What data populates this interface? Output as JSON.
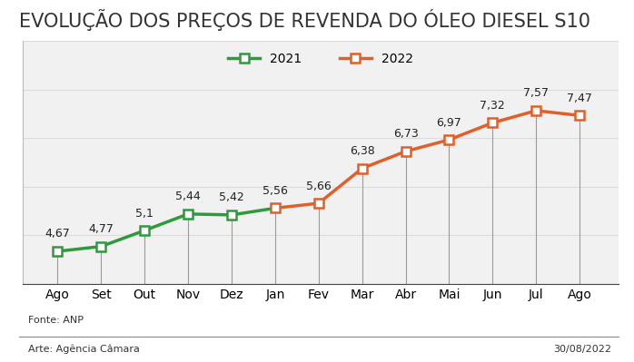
{
  "chart_data": {
    "type": "line",
    "title": "EVOLUÇÃO DOS PREÇOS DE REVENDA DO ÓLEO DIESEL S10",
    "source": "Fonte: ANP",
    "credit": "Arte: Agência Câmara",
    "date": "30/08/2022",
    "categories": [
      "Ago",
      "Set",
      "Out",
      "Nov",
      "Dez",
      "Jan",
      "Fev",
      "Mar",
      "Abr",
      "Mai",
      "Jun",
      "Jul",
      "Ago"
    ],
    "series": [
      {
        "name": "2021",
        "color": "#2e9a3c",
        "marker": "s",
        "line_style": "solid",
        "values": [
          4.67,
          4.77,
          5.1,
          5.44,
          5.42,
          null,
          null,
          null,
          null,
          null,
          null,
          null,
          null
        ],
        "value_labels": [
          "4,67",
          "4,77",
          "5,1",
          "5,44",
          "5,42",
          null,
          null,
          null,
          null,
          null,
          null,
          null,
          null
        ]
      },
      {
        "name": "2022",
        "color": "#e0602a",
        "marker": "s",
        "line_style": "solid",
        "values": [
          null,
          null,
          null,
          null,
          null,
          5.56,
          5.66,
          6.38,
          6.73,
          6.97,
          7.32,
          7.57,
          7.47
        ],
        "value_labels": [
          null,
          null,
          null,
          null,
          null,
          "5,56",
          "5,66",
          "6,38",
          "6,73",
          "6,97",
          "7,32",
          "7,57",
          "7,47"
        ]
      }
    ],
    "ylim": [
      4,
      9
    ],
    "yticks": [
      4,
      5,
      6,
      7,
      8,
      9
    ],
    "grid": true,
    "legend": "upper center",
    "data_labels": true,
    "tick_labels": "x"
  }
}
